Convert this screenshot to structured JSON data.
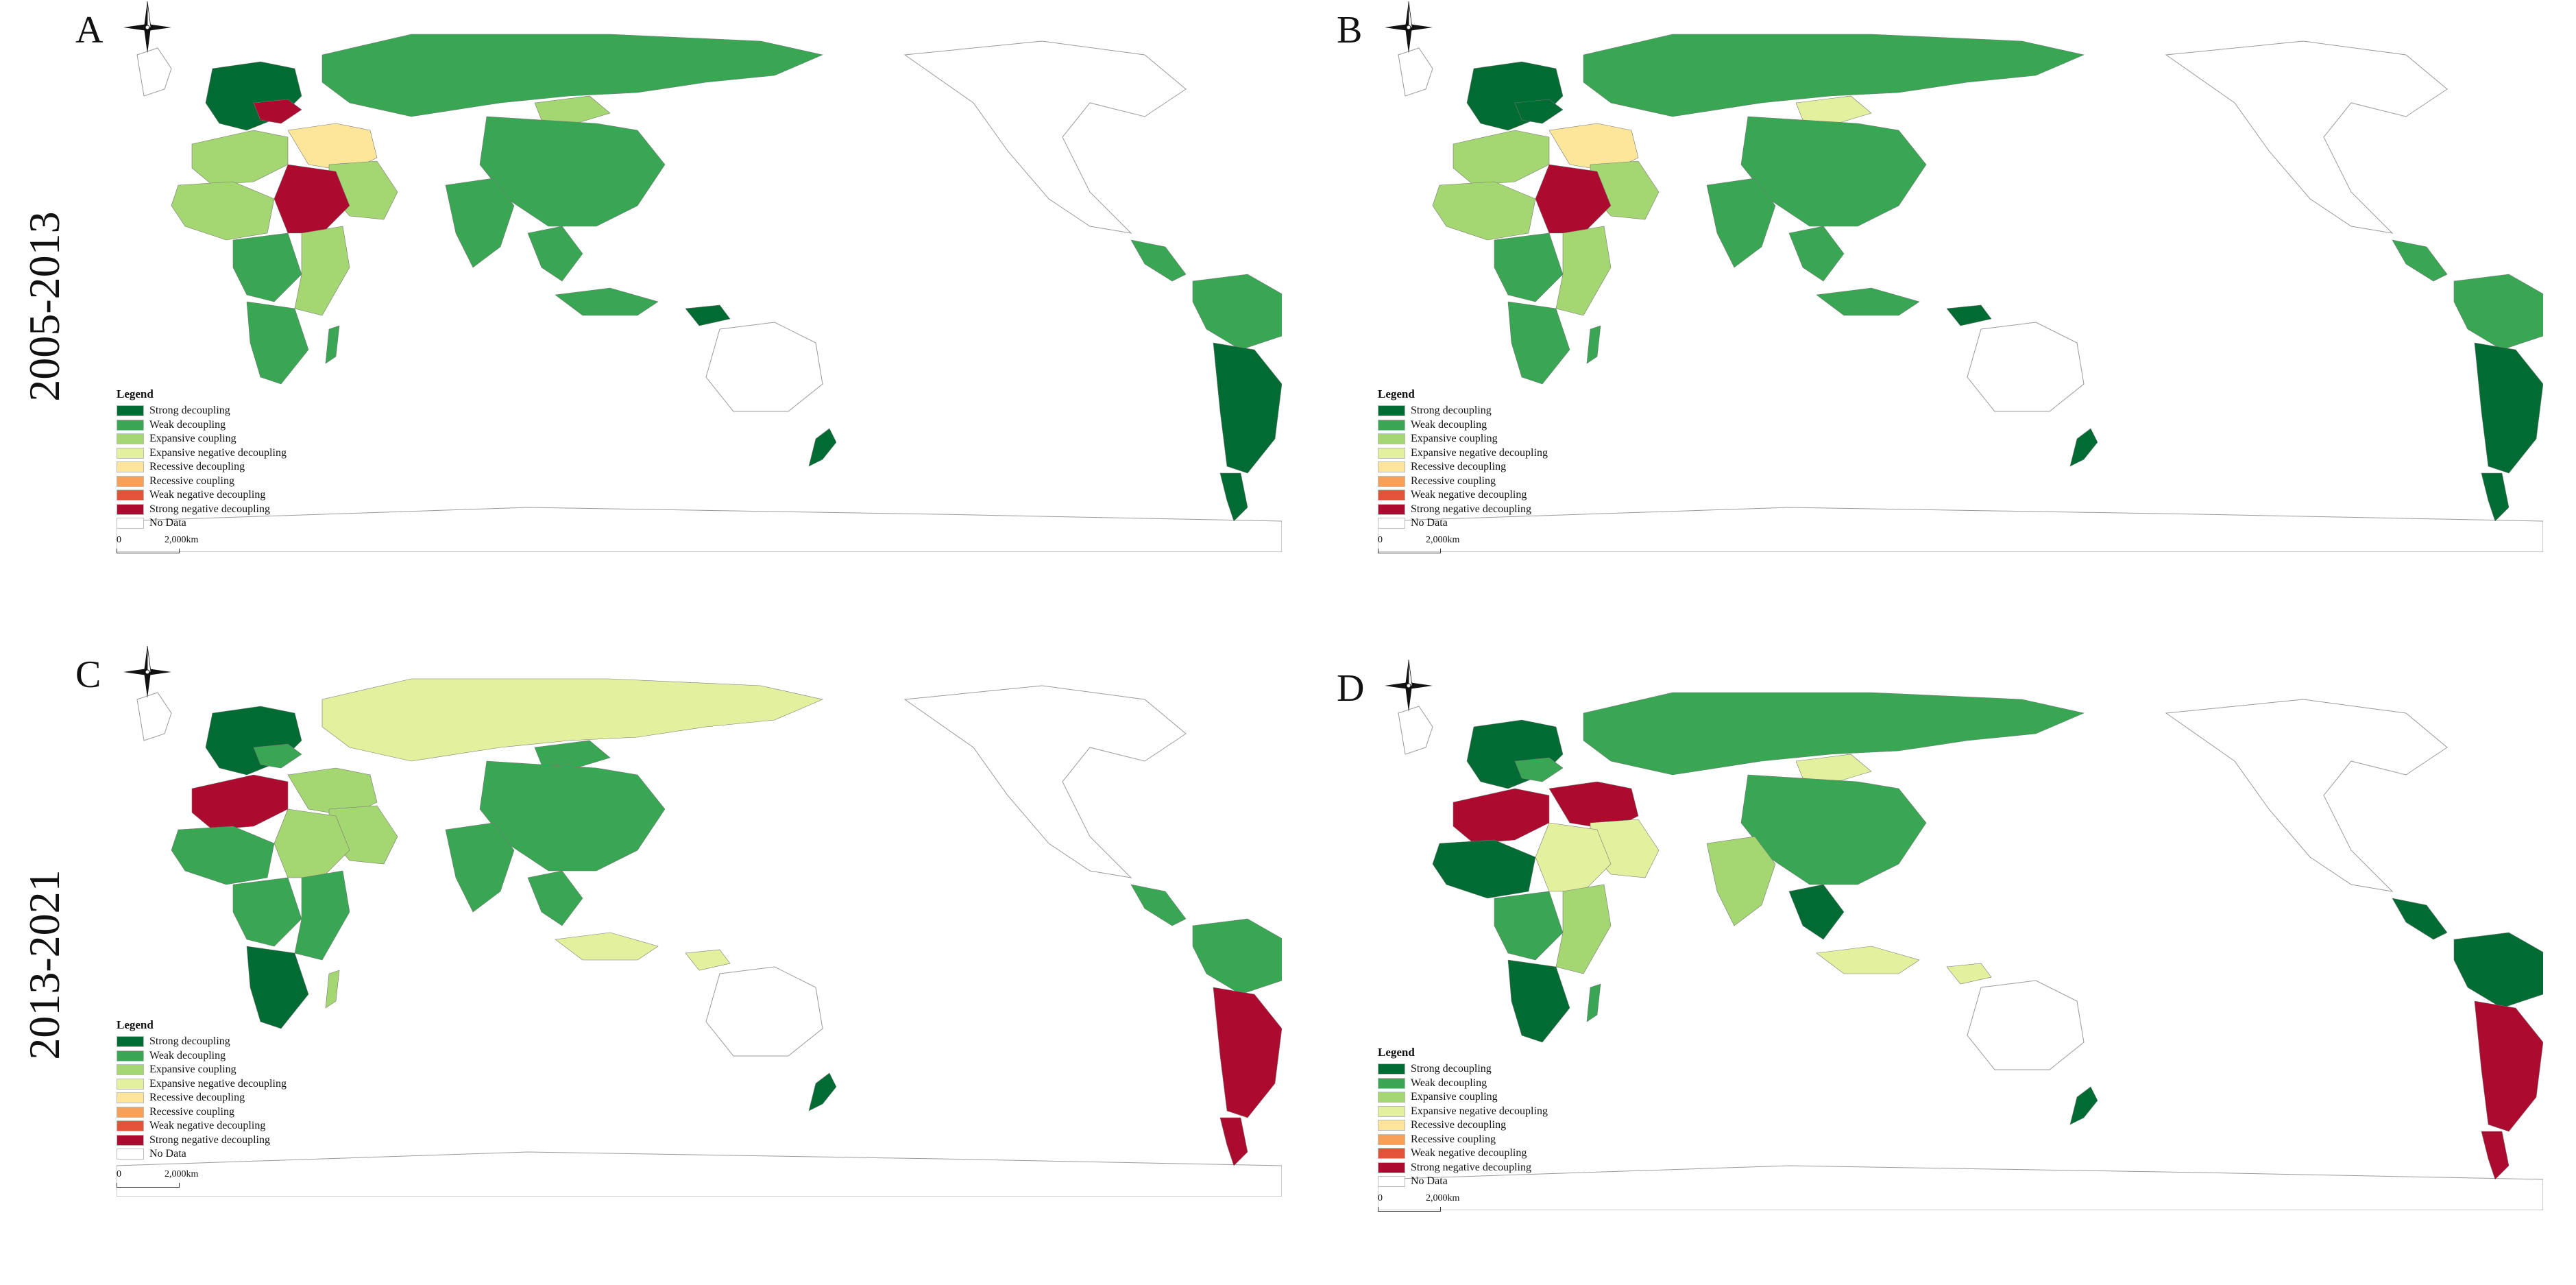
{
  "row_labels": [
    "2005-2013",
    "2013-2021"
  ],
  "legend": {
    "title": "Legend",
    "scale_zero": "0",
    "scale_label": "2,000km",
    "categories": [
      {
        "label": "Strong decoupling",
        "color": "#006b33"
      },
      {
        "label": "Weak decoupling",
        "color": "#38a653"
      },
      {
        "label": "Expansive coupling",
        "color": "#a4d672"
      },
      {
        "label": "Expansive negative decoupling",
        "color": "#e3f09e"
      },
      {
        "label": "Recessive decoupling",
        "color": "#fde59a"
      },
      {
        "label": "Recessive coupling",
        "color": "#f7a05a"
      },
      {
        "label": "Weak negative decoupling",
        "color": "#e4523a"
      },
      {
        "label": "Strong negative decoupling",
        "color": "#ac0a2e"
      },
      {
        "label": "No Data",
        "color": "#ffffff"
      }
    ]
  },
  "panels": [
    {
      "label": "A",
      "icon": "north-arrow-compass-icon"
    },
    {
      "label": "B",
      "icon": "north-arrow-compass-icon"
    },
    {
      "label": "C",
      "icon": "north-arrow-compass-icon"
    },
    {
      "label": "D",
      "icon": "north-arrow-compass-icon"
    }
  ]
}
